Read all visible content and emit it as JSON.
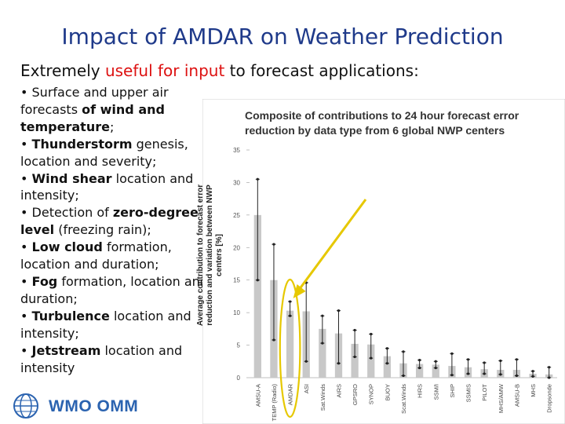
{
  "slide": {
    "title": "Impact of AMDAR on Weather Prediction",
    "subtitle_pre": "Extremely ",
    "subtitle_highlight": "useful for input",
    "subtitle_post": " to forecast applications:",
    "highlight_color": "#dd1111",
    "title_color": "#1f3a8a"
  },
  "bullets": [
    {
      "pre": "• Surface and upper air forecasts ",
      "bold": "of wind and temperature",
      "post": ";"
    },
    {
      "pre": "• ",
      "bold": "Thunderstorm",
      "post": " genesis, location and severity;"
    },
    {
      "pre": "• ",
      "bold": "Wind shear",
      "post": " location and intensity;"
    },
    {
      "pre": "• Detection of ",
      "bold": "zero-degree level",
      "post": " (freezing rain);"
    },
    {
      "pre": "• ",
      "bold": "Low cloud",
      "post": " formation, location and duration;"
    },
    {
      "pre": "• ",
      "bold": "Fog",
      "post": " formation, location and duration;"
    },
    {
      "pre": "• ",
      "bold": "Turbulence",
      "post": " location and intensity;"
    },
    {
      "pre": "• ",
      "bold": "Jetstream",
      "post": " location and intensity"
    }
  ],
  "chart_data": {
    "type": "bar",
    "title": "Composite of contributions to 24 hour forecast error reduction by data type from 6 global NWP centers",
    "ylabel": "Average contribution to forecast error reduction and variation between NWP centers [%]",
    "xlabel": "",
    "ylim": [
      0,
      35
    ],
    "yticks": [
      0,
      5,
      10,
      15,
      20,
      25,
      30,
      35
    ],
    "grid": false,
    "categories": [
      "AMSU-A",
      "TEMP (Radio)",
      "AMDAR",
      "ASI",
      "Sat.Winds",
      "AIRS",
      "GPSRO",
      "SYNOP",
      "BUOY",
      "Scat.Winds",
      "HIRS",
      "SSM/I",
      "SHIP",
      "SSMIS",
      "PILOT",
      "MHS/AMW",
      "AMSU-B",
      "MHS",
      "Dropsonde"
    ],
    "values": [
      25,
      15,
      10.3,
      10.2,
      7.5,
      6.8,
      5.2,
      5.1,
      3.3,
      2.2,
      2.1,
      2.0,
      1.8,
      1.6,
      1.3,
      1.2,
      1.2,
      0.6,
      0.5
    ],
    "error_low": [
      15,
      5.8,
      9.5,
      2.5,
      5.3,
      2.2,
      3.2,
      3.0,
      2.2,
      0.3,
      1.5,
      1.5,
      0.4,
      0.6,
      0.6,
      0.5,
      0.3,
      0.2,
      0.0
    ],
    "error_high": [
      30.5,
      20.5,
      11.7,
      14.6,
      9.5,
      10.3,
      7.3,
      6.7,
      4.5,
      4.0,
      2.7,
      2.5,
      3.7,
      2.8,
      2.3,
      2.6,
      2.8,
      1.0,
      1.6
    ],
    "bar_color": "#c8c8c8",
    "highlighted_category": "AMDAR",
    "highlight_color": "#e6c800",
    "arrow_color": "#e6c800"
  },
  "footer": {
    "logo_text": "WMO OMM",
    "logo_color": "#2b63b0"
  }
}
